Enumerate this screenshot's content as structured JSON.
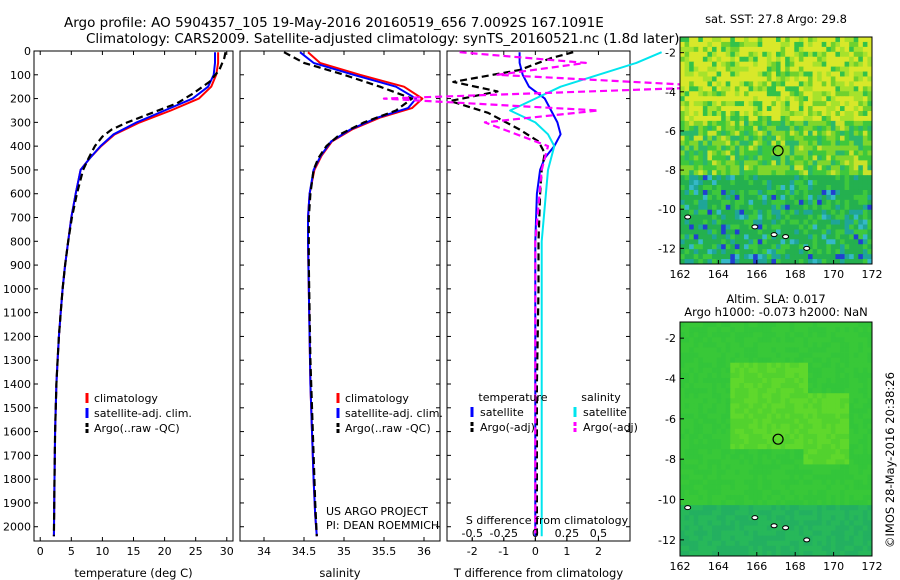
{
  "header": {
    "line1": "Argo profile: AO 5904357_105 19-May-2016 20160519_656 7.0092S 167.1091E",
    "line2": "Climatology: CARS2009. Satellite-adjusted climatology: synTS_20160521.nc (1.8d later)"
  },
  "colors": {
    "climatology": "#ff0000",
    "satellite": "#0000ff",
    "argo": "#000000",
    "salinity_sat": "#00e5ee",
    "salinity_argo": "#ff00ff"
  },
  "chart_data": [
    {
      "type": "line",
      "id": "temperature",
      "xlabel": "temperature (deg C)",
      "ylabel": "",
      "xlim": [
        -1,
        31
      ],
      "ylim": [
        2060,
        0
      ],
      "xticks": [
        0,
        5,
        10,
        15,
        20,
        25,
        30
      ],
      "yticks": [
        0,
        100,
        200,
        300,
        400,
        500,
        600,
        700,
        800,
        900,
        1000,
        1100,
        1200,
        1300,
        1400,
        1500,
        1600,
        1700,
        1800,
        1900,
        2000
      ],
      "legend": [
        "climatology",
        "satellite-adj. clim.",
        "Argo(..raw -QC)"
      ],
      "series": [
        {
          "name": "climatology",
          "color": "#ff0000",
          "dash": "",
          "x": [
            28.6,
            28.6,
            28.3,
            27.5,
            25.5,
            21,
            16,
            12,
            9.8,
            8,
            6.5,
            5.7,
            5,
            4.5,
            4,
            3.6,
            3.3,
            3,
            2.8,
            2.6,
            2.4,
            2.3,
            2.2
          ],
          "y": [
            5,
            50,
            100,
            150,
            200,
            250,
            300,
            350,
            400,
            450,
            500,
            600,
            700,
            800,
            900,
            1000,
            1100,
            1200,
            1300,
            1400,
            1600,
            1800,
            2040
          ]
        },
        {
          "name": "satellite-adj. clim.",
          "color": "#0000ff",
          "dash": "",
          "x": [
            28.1,
            28.1,
            27.9,
            27,
            24.5,
            20,
            15.5,
            11.8,
            9.7,
            8,
            6.5,
            5.7,
            5,
            4.5,
            4,
            3.6,
            3.3,
            3,
            2.8,
            2.6,
            2.4,
            2.3,
            2.2
          ],
          "y": [
            5,
            50,
            100,
            150,
            200,
            250,
            300,
            350,
            400,
            450,
            500,
            600,
            700,
            800,
            900,
            1000,
            1100,
            1200,
            1300,
            1400,
            1600,
            1800,
            2040
          ]
        },
        {
          "name": "Argo(..raw -QC)",
          "color": "#000000",
          "dash": "7,4",
          "x": [
            29.8,
            29.6,
            28.8,
            27.2,
            24.5,
            22,
            18,
            14,
            11.5,
            10,
            8.8,
            7.8,
            6.9,
            5.9,
            5.1,
            4.5,
            4,
            3.6,
            3.3,
            3,
            2.8,
            2.6,
            2.4,
            2.3,
            2.2
          ],
          "y": [
            5,
            30,
            80,
            130,
            180,
            220,
            260,
            300,
            330,
            360,
            400,
            450,
            500,
            600,
            700,
            800,
            900,
            1000,
            1100,
            1200,
            1300,
            1400,
            1600,
            1800,
            2040
          ]
        }
      ]
    },
    {
      "type": "line",
      "id": "salinity",
      "xlabel": "salinity",
      "ylabel": "",
      "xlim": [
        33.7,
        36.2
      ],
      "ylim": [
        2060,
        0
      ],
      "xticks": [
        34,
        34.5,
        35,
        35.5,
        36
      ],
      "legend": [
        "climatology",
        "satellite-adj. clim.",
        "Argo(..raw -QC)"
      ],
      "footer": [
        "US ARGO PROJECT",
        "PI: DEAN ROEMMICH"
      ],
      "series": [
        {
          "name": "climatology",
          "color": "#ff0000",
          "dash": "",
          "x": [
            34.55,
            34.7,
            35.2,
            35.75,
            35.98,
            35.85,
            35.45,
            35.1,
            34.85,
            34.72,
            34.63,
            34.57,
            34.55,
            34.55,
            34.56,
            34.57,
            34.58,
            34.6,
            34.62,
            34.64,
            34.66
          ],
          "y": [
            5,
            50,
            100,
            150,
            200,
            240,
            280,
            330,
            380,
            440,
            500,
            600,
            700,
            800,
            1000,
            1200,
            1400,
            1600,
            1800,
            1950,
            2040
          ]
        },
        {
          "name": "satellite-adj. clim.",
          "color": "#0000ff",
          "dash": "",
          "x": [
            34.45,
            34.62,
            35.12,
            35.65,
            35.9,
            35.8,
            35.42,
            35.08,
            34.84,
            34.71,
            34.62,
            34.57,
            34.55,
            34.55,
            34.56,
            34.57,
            34.58,
            34.6,
            34.62,
            34.64,
            34.66
          ],
          "y": [
            5,
            50,
            100,
            150,
            200,
            240,
            280,
            330,
            380,
            440,
            500,
            600,
            700,
            800,
            1000,
            1200,
            1400,
            1600,
            1800,
            1950,
            2040
          ]
        },
        {
          "name": "Argo(..raw -QC)",
          "color": "#000000",
          "dash": "7,4",
          "x": [
            34.25,
            34.5,
            35,
            35.45,
            35.85,
            35.65,
            35.25,
            34.95,
            34.78,
            34.68,
            34.62,
            34.58,
            34.56,
            34.56,
            34.57,
            34.58,
            34.6,
            34.62,
            34.64,
            34.66
          ],
          "y": [
            5,
            50,
            100,
            150,
            200,
            250,
            300,
            350,
            400,
            450,
            500,
            600,
            700,
            900,
            1100,
            1300,
            1500,
            1700,
            1900,
            2040
          ]
        }
      ]
    },
    {
      "type": "line",
      "id": "differences",
      "xlabel": "T difference from climatology",
      "x2label": "S difference from climatology",
      "xlim": [
        -2.8,
        3
      ],
      "x2lim": [
        -0.7,
        0.75
      ],
      "ylim": [
        2060,
        0
      ],
      "xticks": [
        -2,
        -1,
        0,
        1,
        2
      ],
      "x2ticks": [
        -0.5,
        -0.25,
        0,
        0.25,
        0.5
      ],
      "legend_titles": [
        "temperature",
        "salinity"
      ],
      "legend": [
        "satellite",
        "Argo(-adj)",
        "satellite",
        "Argo(-adj)"
      ],
      "series": [
        {
          "name": "temperature satellite",
          "color": "#0000ff",
          "dash": "",
          "x": [
            -0.5,
            -0.5,
            -0.4,
            -0.2,
            0.3,
            0.5,
            0.7,
            0.8,
            0.6,
            0.3,
            0.15,
            0.05,
            0,
            0,
            0,
            0
          ],
          "y": [
            5,
            50,
            100,
            150,
            200,
            250,
            300,
            350,
            400,
            450,
            500,
            600,
            800,
            1200,
            1600,
            2040
          ]
        },
        {
          "name": "temperature Argo(-adj)",
          "color": "#000000",
          "dash": "7,4",
          "x": [
            1.2,
            0.5,
            -0.5,
            -2.6,
            -1.2,
            -2.7,
            -1.5,
            -0.5,
            0.1,
            0.3,
            0.2,
            0.15,
            0.1,
            0.1,
            0.05,
            0.05,
            0.05
          ],
          "y": [
            5,
            30,
            80,
            130,
            170,
            210,
            260,
            330,
            380,
            430,
            500,
            600,
            800,
            1000,
            1400,
            1800,
            2040
          ]
        },
        {
          "name": "salinity satellite",
          "color": "#00e5ee",
          "dash": "",
          "x": [
            1.0,
            0.8,
            0.5,
            0.2,
            0,
            -0.2,
            0,
            0.1,
            0.15,
            0.1,
            0.05,
            0.05,
            0.05,
            0.05
          ],
          "y": [
            5,
            50,
            100,
            150,
            200,
            250,
            300,
            350,
            400,
            500,
            800,
            1200,
            1600,
            2040
          ]
        },
        {
          "name": "salinity Argo(-adj)",
          "color": "#ff00ff",
          "dash": "7,4",
          "x": [
            -0.6,
            0.4,
            -0.3,
            1.5,
            -1.2,
            0.5,
            -0.4,
            0.1,
            0.05,
            0,
            0,
            0
          ],
          "y": [
            5,
            50,
            100,
            150,
            200,
            250,
            300,
            400,
            500,
            800,
            1400,
            2040
          ]
        }
      ]
    },
    {
      "type": "heatmap",
      "id": "sst-map",
      "title": "sat. SST: 27.8 Argo: 29.8",
      "xlim": [
        162,
        172
      ],
      "ylim": [
        -12.8,
        -1.2
      ],
      "xticks": [
        162,
        164,
        166,
        168,
        170,
        172
      ],
      "yticks": [
        -2,
        -4,
        -6,
        -8,
        -10,
        -12
      ],
      "marker": {
        "lon": 167.1091,
        "lat": -7.0092
      }
    },
    {
      "type": "heatmap",
      "id": "sla-map",
      "title": "Altim. SLA: 0.017",
      "subtitle": "Argo h1000: -0.073 h2000: NaN",
      "xlim": [
        162,
        172
      ],
      "ylim": [
        -12.8,
        -1.2
      ],
      "xticks": [
        162,
        164,
        166,
        168,
        170,
        172
      ],
      "yticks": [
        -2,
        -4,
        -6,
        -8,
        -10,
        -12
      ],
      "marker": {
        "lon": 167.1091,
        "lat": -7.0092
      }
    }
  ],
  "footer": {
    "stamp": "©IMOS 28-May-2016 20:38:26"
  }
}
